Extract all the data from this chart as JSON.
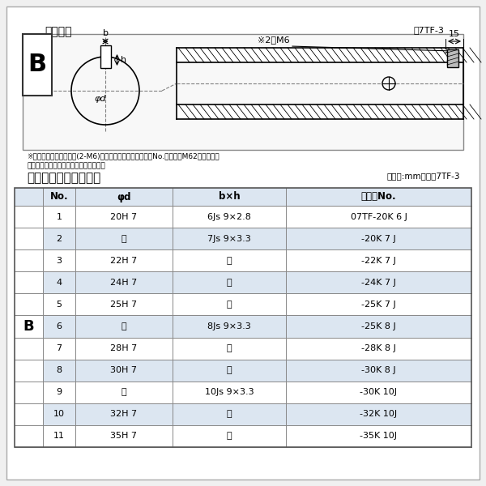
{
  "title_top": "軸穴形状",
  "title_top_right": "図7TF-3",
  "table_title": "軸穴形状コード一覧表",
  "table_unit": "（単位:mm）　表7TF-3",
  "note1": "※セットボルト用タップ(2-M6)が必要な場合は右記コードNo.の末尾にM62を付ける。",
  "note2": "（セットボルトは付属されています。）",
  "col_headers": [
    "No.",
    "φd",
    "b×h",
    "コードNo."
  ],
  "row_label": "B",
  "rows": [
    [
      "1",
      "20H 7",
      "6Js 9×2.8",
      "07TF-20K 6 J"
    ],
    [
      "2",
      "〃",
      "7Js 9×3.3",
      "-20K 7 J"
    ],
    [
      "3",
      "22H 7",
      "〃",
      "-22K 7 J"
    ],
    [
      "4",
      "24H 7",
      "〃",
      "-24K 7 J"
    ],
    [
      "5",
      "25H 7",
      "〃",
      "-25K 7 J"
    ],
    [
      "6",
      "〃",
      "8Js 9×3.3",
      "-25K 8 J"
    ],
    [
      "7",
      "28H 7",
      "〃",
      "-28K 8 J"
    ],
    [
      "8",
      "30H 7",
      "〃",
      "-30K 8 J"
    ],
    [
      "9",
      "〃",
      "10Js 9×3.3",
      "-30K 10J"
    ],
    [
      "10",
      "32H 7",
      "〃",
      "-32K 10J"
    ],
    [
      "11",
      "35H 7",
      "〃",
      "-35K 10J"
    ]
  ],
  "bg_color_header": "#dce6f1",
  "bg_color_white": "#ffffff",
  "bg_color_light": "#dce6f1",
  "bg_color_page": "#f0f0f0",
  "border_color": "#888888",
  "text_color": "#000000",
  "diagram_bg": "#f5f5f5"
}
